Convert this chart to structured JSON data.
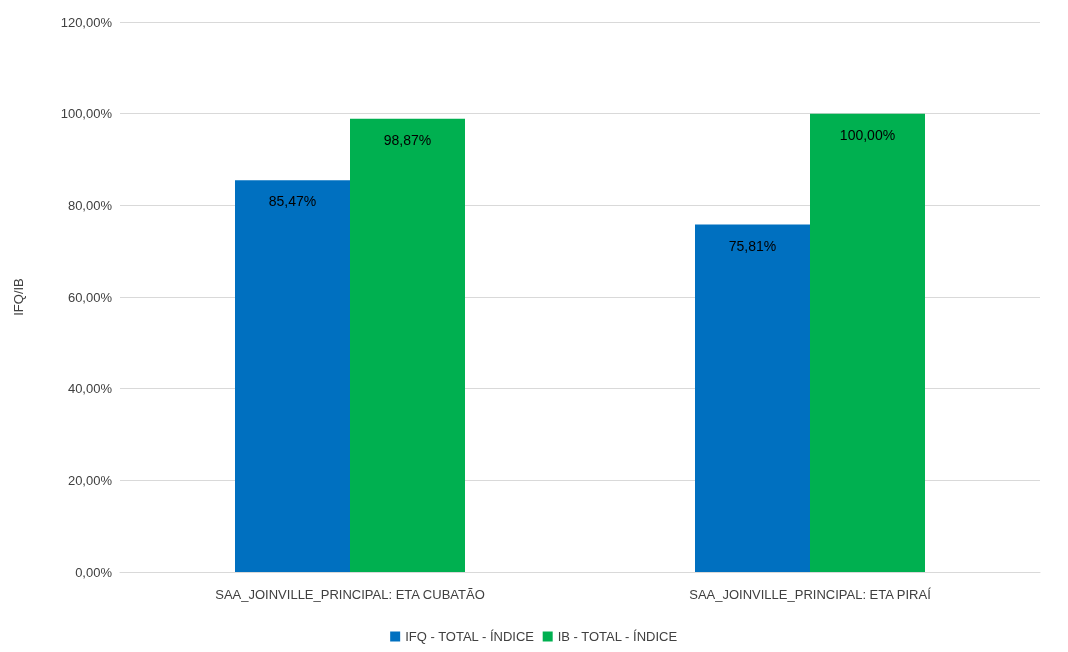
{
  "chart_data": {
    "type": "bar",
    "ylabel": "IFQ/IB",
    "categories": [
      "SAA_JOINVILLE_PRINCIPAL: ETA CUBATÃO",
      "SAA_JOINVILLE_PRINCIPAL: ETA PIRAÍ"
    ],
    "series": [
      {
        "name": "IFQ - TOTAL - ÍNDICE",
        "color": "#0070c0",
        "values": [
          85.47,
          75.81
        ],
        "value_labels": [
          "85,47%",
          "75,81%"
        ]
      },
      {
        "name": "IB - TOTAL - ÍNDICE",
        "color": "#00b050",
        "values": [
          98.87,
          100
        ],
        "value_labels": [
          "98,87%",
          "100,00%"
        ]
      }
    ],
    "ylim": [
      0,
      120
    ],
    "yticks": [
      {
        "value": 0,
        "label": "0,00%"
      },
      {
        "value": 20,
        "label": "20,00%"
      },
      {
        "value": 40,
        "label": "40,00%"
      },
      {
        "value": 60,
        "label": "60,00%"
      },
      {
        "value": 80,
        "label": "80,00%"
      },
      {
        "value": 100,
        "label": "100,00%"
      },
      {
        "value": 120,
        "label": "120,00%"
      }
    ],
    "grid": "y",
    "legend": "bottom"
  }
}
